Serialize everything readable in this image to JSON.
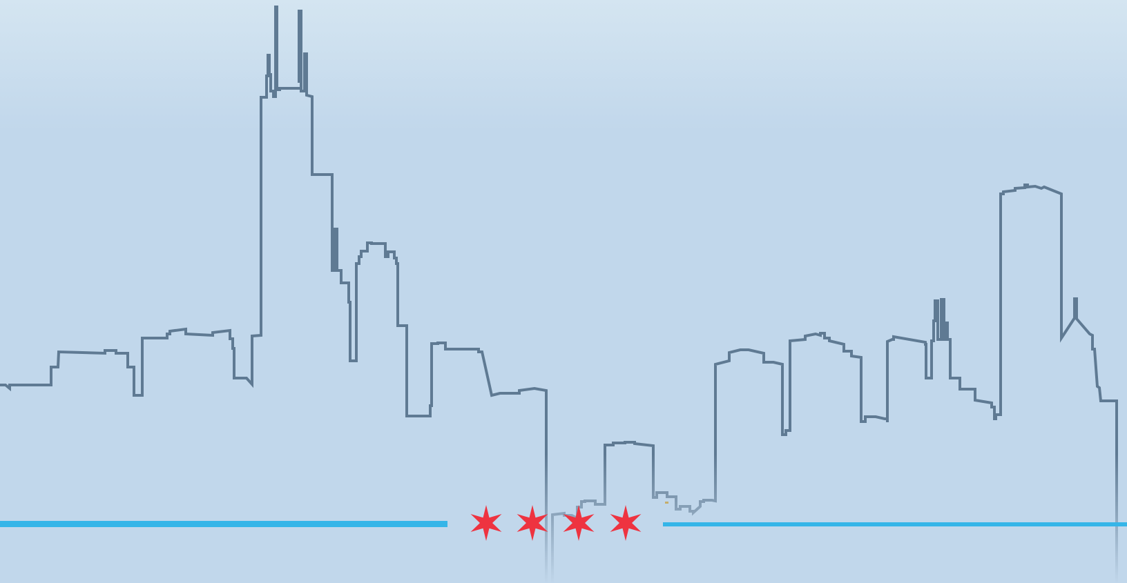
{
  "scene": {
    "subject": "chicago-skyline-with-flag-stars",
    "colors": {
      "sky_top": "#d4e5f1",
      "sky_bottom": "#c1d7eb",
      "skyline_stroke": "#5f7a93",
      "stripe": "#35b5e8",
      "star": "#ee3340"
    },
    "stars": {
      "count": 4,
      "points": 6
    },
    "stripes": {
      "count": 2
    }
  }
}
